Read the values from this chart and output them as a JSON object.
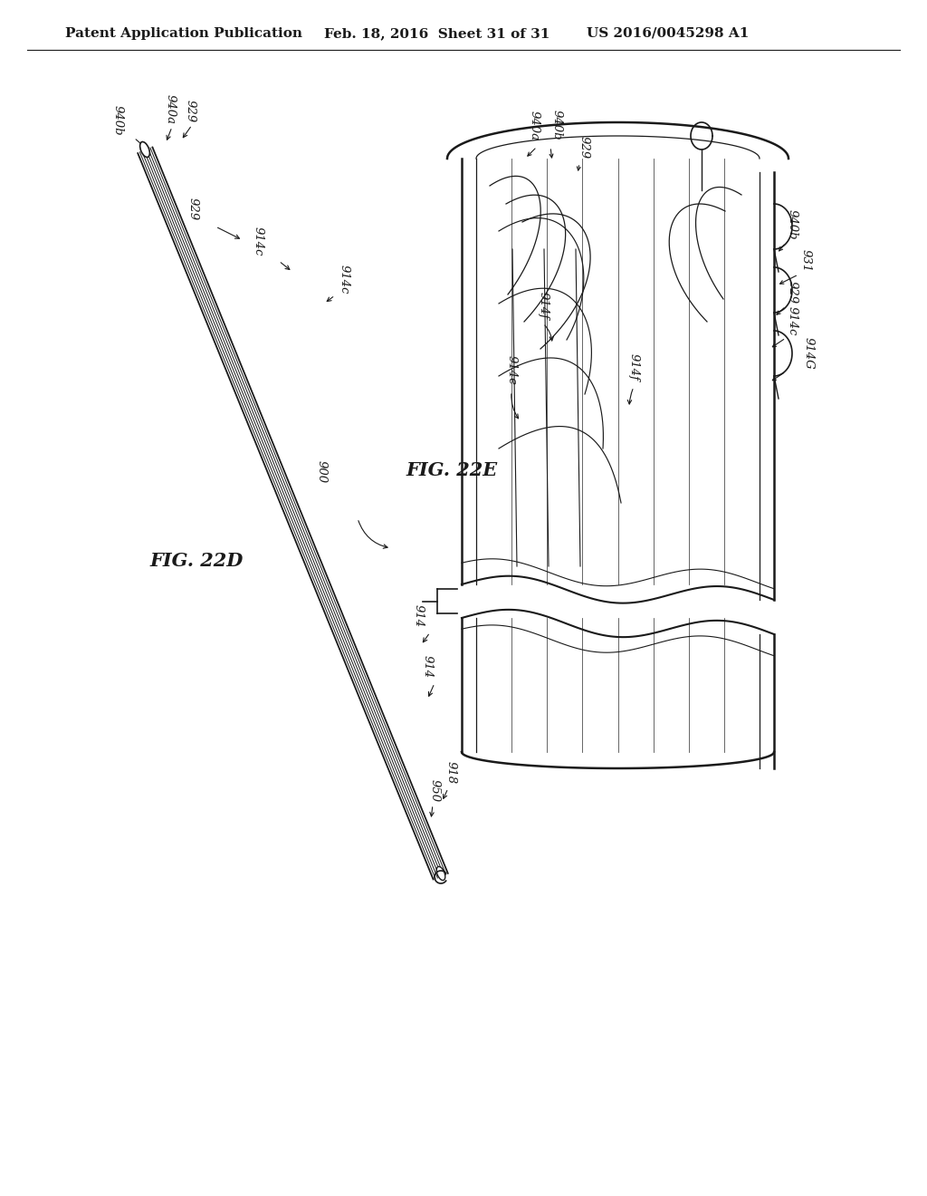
{
  "bg_color": "#ffffff",
  "header_left": "Patent Application Publication",
  "header_mid": "Feb. 18, 2016  Sheet 31 of 31",
  "header_right": "US 2016/0045298 A1",
  "line_color": "#1a1a1a",
  "label_fontsize": 9.5,
  "header_fontsize": 11,
  "fig22D_label": "FIG. 22D",
  "fig22E_label": "FIG. 22E"
}
